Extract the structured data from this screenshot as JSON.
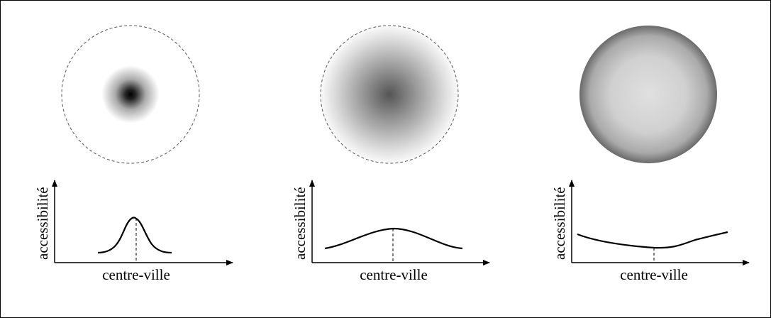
{
  "panels": [
    {
      "circle_style": "concentrated-center",
      "y_axis_label": "accessibilité",
      "x_axis_label": "centre-ville"
    },
    {
      "circle_style": "diffuse-center",
      "y_axis_label": "accessibilité",
      "x_axis_label": "centre-ville"
    },
    {
      "circle_style": "uniform-edge-darker",
      "y_axis_label": "accessibilité",
      "x_axis_label": "centre-ville"
    }
  ],
  "colors": {
    "line": "#000000",
    "dashed_outline": "#555555"
  }
}
